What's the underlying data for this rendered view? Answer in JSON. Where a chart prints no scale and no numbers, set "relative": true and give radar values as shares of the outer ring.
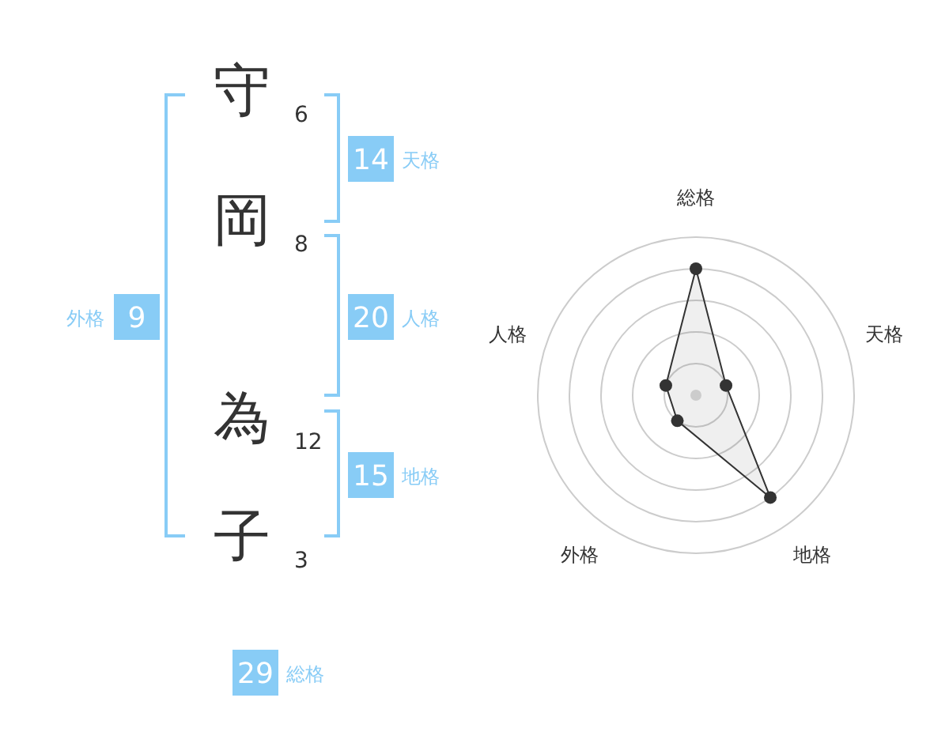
{
  "chart_data": [
    {
      "type": "other",
      "categories": [
        "守",
        "岡",
        "為",
        "子"
      ],
      "values": [
        6,
        8,
        12,
        3
      ],
      "data_labels": true,
      "color": "#88ccf6",
      "annotations": [
        "14",
        "天格",
        "20",
        "人格",
        "15",
        "地格",
        "9",
        "外格",
        "29",
        "総格"
      ]
    },
    {
      "type": "radar",
      "categories": [
        "総格",
        "天格",
        "地格",
        "外格",
        "人格"
      ],
      "relative": true,
      "grid": true,
      "marker": "circle",
      "series": [
        {
          "color": "#333333",
          "values": [
            0.8,
            0.2,
            0.8,
            0.2,
            0.2
          ]
        }
      ]
    }
  ]
}
